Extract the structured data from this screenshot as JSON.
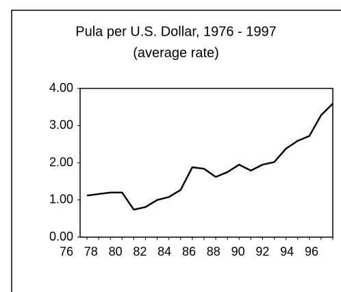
{
  "chart_data": {
    "type": "line",
    "title": "Pula per U.S. Dollar, 1976 - 1997",
    "subtitle": "(average rate)",
    "categories": [
      "76",
      null,
      "78",
      null,
      "80",
      null,
      "82",
      null,
      "84",
      null,
      "86",
      null,
      "88",
      null,
      "90",
      null,
      "92",
      null,
      "94",
      null,
      "96",
      null
    ],
    "series": [
      {
        "name": "Pula per U.S. Dollar",
        "color": "#000000",
        "values": [
          1.12,
          1.16,
          1.2,
          1.2,
          0.74,
          0.81,
          1.0,
          1.08,
          1.27,
          1.88,
          1.84,
          1.62,
          1.75,
          1.95,
          1.79,
          1.95,
          2.02,
          2.38,
          2.59,
          2.72,
          3.28,
          3.59
        ]
      }
    ],
    "ylim": [
      0,
      4
    ],
    "yticks": [
      {
        "value": 0,
        "label": "0.00"
      },
      {
        "value": 1,
        "label": "1.00"
      },
      {
        "value": 2,
        "label": "2.00"
      },
      {
        "value": 3,
        "label": "3.00"
      },
      {
        "value": 4,
        "label": "4.00"
      }
    ]
  }
}
